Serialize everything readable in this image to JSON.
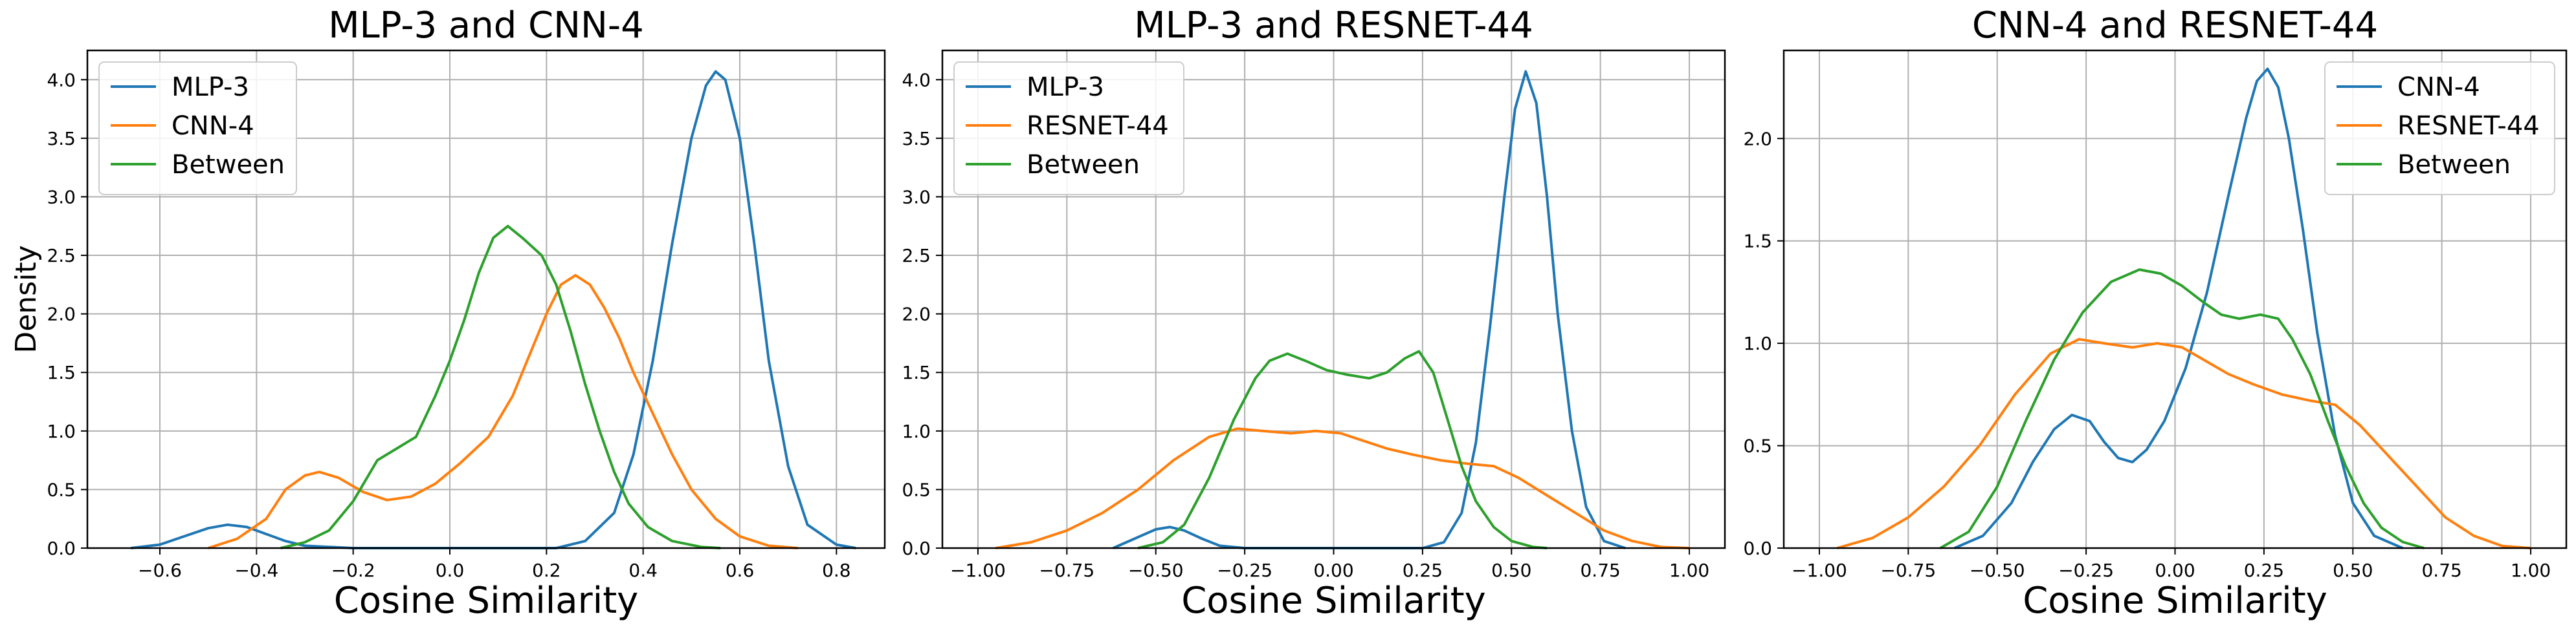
{
  "chart_data": [
    {
      "type": "line",
      "title": "MLP-3 and CNN-4",
      "xlabel": "Cosine Similarity",
      "ylabel": "Density",
      "xlim": [
        -0.75,
        0.9
      ],
      "ylim": [
        0,
        4.25
      ],
      "xticks": [
        -0.6,
        -0.4,
        -0.2,
        0.0,
        0.2,
        0.4,
        0.6,
        0.8
      ],
      "xtick_labels": [
        "−0.6",
        "−0.4",
        "−0.2",
        "0.0",
        "0.2",
        "0.4",
        "0.6",
        "0.8"
      ],
      "yticks": [
        0,
        0.5,
        1.0,
        1.5,
        2.0,
        2.5,
        3.0,
        3.5,
        4.0
      ],
      "ytick_labels": [
        "0.0",
        "0.5",
        "1.0",
        "1.5",
        "2.0",
        "2.5",
        "3.0",
        "3.5",
        "4.0"
      ],
      "grid": true,
      "legend": "top-left",
      "series": [
        {
          "name": "MLP-3",
          "color": "#1f77b4",
          "points": [
            [
              -0.66,
              0
            ],
            [
              -0.6,
              0.03
            ],
            [
              -0.55,
              0.1
            ],
            [
              -0.5,
              0.17
            ],
            [
              -0.46,
              0.2
            ],
            [
              -0.42,
              0.18
            ],
            [
              -0.38,
              0.12
            ],
            [
              -0.34,
              0.06
            ],
            [
              -0.3,
              0.02
            ],
            [
              -0.2,
              0
            ],
            [
              0.22,
              0
            ],
            [
              0.28,
              0.06
            ],
            [
              0.34,
              0.3
            ],
            [
              0.38,
              0.8
            ],
            [
              0.42,
              1.6
            ],
            [
              0.46,
              2.6
            ],
            [
              0.5,
              3.5
            ],
            [
              0.53,
              3.95
            ],
            [
              0.55,
              4.07
            ],
            [
              0.57,
              4.0
            ],
            [
              0.6,
              3.5
            ],
            [
              0.63,
              2.6
            ],
            [
              0.66,
              1.6
            ],
            [
              0.7,
              0.7
            ],
            [
              0.74,
              0.2
            ],
            [
              0.8,
              0.03
            ],
            [
              0.84,
              0
            ]
          ]
        },
        {
          "name": "CNN-4",
          "color": "#ff7f0e",
          "points": [
            [
              -0.5,
              0
            ],
            [
              -0.44,
              0.08
            ],
            [
              -0.38,
              0.25
            ],
            [
              -0.34,
              0.5
            ],
            [
              -0.3,
              0.62
            ],
            [
              -0.27,
              0.65
            ],
            [
              -0.23,
              0.6
            ],
            [
              -0.18,
              0.48
            ],
            [
              -0.13,
              0.41
            ],
            [
              -0.08,
              0.44
            ],
            [
              -0.03,
              0.55
            ],
            [
              0.02,
              0.72
            ],
            [
              0.08,
              0.95
            ],
            [
              0.13,
              1.3
            ],
            [
              0.17,
              1.7
            ],
            [
              0.2,
              2.0
            ],
            [
              0.23,
              2.25
            ],
            [
              0.26,
              2.33
            ],
            [
              0.29,
              2.25
            ],
            [
              0.32,
              2.05
            ],
            [
              0.35,
              1.8
            ],
            [
              0.38,
              1.5
            ],
            [
              0.42,
              1.15
            ],
            [
              0.46,
              0.8
            ],
            [
              0.5,
              0.5
            ],
            [
              0.55,
              0.25
            ],
            [
              0.6,
              0.1
            ],
            [
              0.66,
              0.02
            ],
            [
              0.72,
              0
            ]
          ]
        },
        {
          "name": "Between",
          "color": "#2ca02c",
          "points": [
            [
              -0.35,
              0
            ],
            [
              -0.3,
              0.05
            ],
            [
              -0.25,
              0.15
            ],
            [
              -0.2,
              0.4
            ],
            [
              -0.15,
              0.75
            ],
            [
              -0.11,
              0.85
            ],
            [
              -0.07,
              0.95
            ],
            [
              -0.03,
              1.3
            ],
            [
              0.0,
              1.6
            ],
            [
              0.03,
              1.95
            ],
            [
              0.06,
              2.35
            ],
            [
              0.09,
              2.65
            ],
            [
              0.12,
              2.75
            ],
            [
              0.15,
              2.65
            ],
            [
              0.19,
              2.5
            ],
            [
              0.22,
              2.25
            ],
            [
              0.25,
              1.85
            ],
            [
              0.28,
              1.4
            ],
            [
              0.31,
              1.0
            ],
            [
              0.34,
              0.65
            ],
            [
              0.37,
              0.38
            ],
            [
              0.41,
              0.18
            ],
            [
              0.46,
              0.06
            ],
            [
              0.52,
              0.01
            ],
            [
              0.56,
              0
            ]
          ]
        }
      ]
    },
    {
      "type": "line",
      "title": "MLP-3 and RESNET-44",
      "xlabel": "Cosine Similarity",
      "ylabel": "",
      "xlim": [
        -1.1,
        1.1
      ],
      "ylim": [
        0,
        4.25
      ],
      "xticks": [
        -1.0,
        -0.75,
        -0.5,
        -0.25,
        0.0,
        0.25,
        0.5,
        0.75,
        1.0
      ],
      "xtick_labels": [
        "−1.00",
        "−0.75",
        "−0.50",
        "−0.25",
        "0.00",
        "0.25",
        "0.50",
        "0.75",
        "1.00"
      ],
      "yticks": [
        0,
        0.5,
        1.0,
        1.5,
        2.0,
        2.5,
        3.0,
        3.5,
        4.0
      ],
      "ytick_labels": [
        "0.0",
        "0.5",
        "1.0",
        "1.5",
        "2.0",
        "2.5",
        "3.0",
        "3.5",
        "4.0"
      ],
      "grid": true,
      "legend": "top-left",
      "series": [
        {
          "name": "MLP-3",
          "color": "#1f77b4",
          "points": [
            [
              -0.62,
              0
            ],
            [
              -0.56,
              0.08
            ],
            [
              -0.5,
              0.16
            ],
            [
              -0.46,
              0.18
            ],
            [
              -0.42,
              0.15
            ],
            [
              -0.37,
              0.08
            ],
            [
              -0.32,
              0.02
            ],
            [
              -0.25,
              0
            ],
            [
              0.25,
              0
            ],
            [
              0.31,
              0.05
            ],
            [
              0.36,
              0.3
            ],
            [
              0.4,
              0.9
            ],
            [
              0.44,
              1.9
            ],
            [
              0.48,
              3.0
            ],
            [
              0.51,
              3.75
            ],
            [
              0.54,
              4.07
            ],
            [
              0.57,
              3.8
            ],
            [
              0.6,
              3.0
            ],
            [
              0.63,
              2.0
            ],
            [
              0.67,
              1.0
            ],
            [
              0.71,
              0.35
            ],
            [
              0.76,
              0.06
            ],
            [
              0.82,
              0
            ]
          ]
        },
        {
          "name": "RESNET-44",
          "color": "#ff7f0e",
          "points": [
            [
              -0.95,
              0
            ],
            [
              -0.85,
              0.05
            ],
            [
              -0.75,
              0.15
            ],
            [
              -0.65,
              0.3
            ],
            [
              -0.55,
              0.5
            ],
            [
              -0.45,
              0.75
            ],
            [
              -0.35,
              0.95
            ],
            [
              -0.27,
              1.02
            ],
            [
              -0.2,
              1.0
            ],
            [
              -0.12,
              0.98
            ],
            [
              -0.05,
              1.0
            ],
            [
              0.02,
              0.98
            ],
            [
              0.08,
              0.92
            ],
            [
              0.15,
              0.85
            ],
            [
              0.22,
              0.8
            ],
            [
              0.3,
              0.75
            ],
            [
              0.38,
              0.72
            ],
            [
              0.45,
              0.7
            ],
            [
              0.52,
              0.6
            ],
            [
              0.6,
              0.45
            ],
            [
              0.68,
              0.3
            ],
            [
              0.76,
              0.15
            ],
            [
              0.84,
              0.06
            ],
            [
              0.92,
              0.01
            ],
            [
              1.0,
              0
            ]
          ]
        },
        {
          "name": "Between",
          "color": "#2ca02c",
          "points": [
            [
              -0.55,
              0
            ],
            [
              -0.48,
              0.05
            ],
            [
              -0.42,
              0.2
            ],
            [
              -0.35,
              0.6
            ],
            [
              -0.28,
              1.1
            ],
            [
              -0.22,
              1.45
            ],
            [
              -0.18,
              1.6
            ],
            [
              -0.13,
              1.66
            ],
            [
              -0.08,
              1.6
            ],
            [
              -0.02,
              1.52
            ],
            [
              0.04,
              1.48
            ],
            [
              0.1,
              1.45
            ],
            [
              0.15,
              1.5
            ],
            [
              0.2,
              1.62
            ],
            [
              0.24,
              1.68
            ],
            [
              0.28,
              1.5
            ],
            [
              0.32,
              1.1
            ],
            [
              0.36,
              0.7
            ],
            [
              0.4,
              0.4
            ],
            [
              0.45,
              0.18
            ],
            [
              0.5,
              0.06
            ],
            [
              0.56,
              0.01
            ],
            [
              0.6,
              0
            ]
          ]
        }
      ]
    },
    {
      "type": "line",
      "title": "CNN-4 and RESNET-44",
      "xlabel": "Cosine Similarity",
      "ylabel": "",
      "xlim": [
        -1.1,
        1.1
      ],
      "ylim": [
        0,
        2.43
      ],
      "xticks": [
        -1.0,
        -0.75,
        -0.5,
        -0.25,
        0.0,
        0.25,
        0.5,
        0.75,
        1.0
      ],
      "xtick_labels": [
        "−1.00",
        "−0.75",
        "−0.50",
        "−0.25",
        "0.00",
        "0.25",
        "0.50",
        "0.75",
        "1.00"
      ],
      "yticks": [
        0,
        0.5,
        1.0,
        1.5,
        2.0
      ],
      "ytick_labels": [
        "0.0",
        "0.5",
        "1.0",
        "1.5",
        "2.0"
      ],
      "grid": true,
      "legend": "top-right",
      "series": [
        {
          "name": "CNN-4",
          "color": "#1f77b4",
          "points": [
            [
              -0.62,
              0
            ],
            [
              -0.54,
              0.06
            ],
            [
              -0.46,
              0.22
            ],
            [
              -0.4,
              0.42
            ],
            [
              -0.34,
              0.58
            ],
            [
              -0.29,
              0.65
            ],
            [
              -0.24,
              0.62
            ],
            [
              -0.2,
              0.52
            ],
            [
              -0.16,
              0.44
            ],
            [
              -0.12,
              0.42
            ],
            [
              -0.08,
              0.48
            ],
            [
              -0.03,
              0.62
            ],
            [
              0.03,
              0.88
            ],
            [
              0.09,
              1.25
            ],
            [
              0.15,
              1.72
            ],
            [
              0.2,
              2.1
            ],
            [
              0.23,
              2.28
            ],
            [
              0.26,
              2.34
            ],
            [
              0.29,
              2.25
            ],
            [
              0.32,
              2.0
            ],
            [
              0.36,
              1.55
            ],
            [
              0.4,
              1.05
            ],
            [
              0.45,
              0.55
            ],
            [
              0.5,
              0.22
            ],
            [
              0.56,
              0.06
            ],
            [
              0.64,
              0
            ]
          ]
        },
        {
          "name": "RESNET-44",
          "color": "#ff7f0e",
          "points": [
            [
              -0.95,
              0
            ],
            [
              -0.85,
              0.05
            ],
            [
              -0.75,
              0.15
            ],
            [
              -0.65,
              0.3
            ],
            [
              -0.55,
              0.5
            ],
            [
              -0.45,
              0.75
            ],
            [
              -0.35,
              0.95
            ],
            [
              -0.27,
              1.02
            ],
            [
              -0.2,
              1.0
            ],
            [
              -0.12,
              0.98
            ],
            [
              -0.05,
              1.0
            ],
            [
              0.02,
              0.98
            ],
            [
              0.08,
              0.92
            ],
            [
              0.15,
              0.85
            ],
            [
              0.22,
              0.8
            ],
            [
              0.3,
              0.75
            ],
            [
              0.38,
              0.72
            ],
            [
              0.45,
              0.7
            ],
            [
              0.52,
              0.6
            ],
            [
              0.6,
              0.45
            ],
            [
              0.68,
              0.3
            ],
            [
              0.76,
              0.15
            ],
            [
              0.84,
              0.06
            ],
            [
              0.92,
              0.01
            ],
            [
              1.0,
              0
            ]
          ]
        },
        {
          "name": "Between",
          "color": "#2ca02c",
          "points": [
            [
              -0.66,
              0
            ],
            [
              -0.58,
              0.08
            ],
            [
              -0.5,
              0.3
            ],
            [
              -0.42,
              0.62
            ],
            [
              -0.34,
              0.92
            ],
            [
              -0.26,
              1.15
            ],
            [
              -0.18,
              1.3
            ],
            [
              -0.1,
              1.36
            ],
            [
              -0.04,
              1.34
            ],
            [
              0.02,
              1.28
            ],
            [
              0.08,
              1.2
            ],
            [
              0.13,
              1.14
            ],
            [
              0.18,
              1.12
            ],
            [
              0.24,
              1.14
            ],
            [
              0.29,
              1.12
            ],
            [
              0.33,
              1.02
            ],
            [
              0.38,
              0.85
            ],
            [
              0.43,
              0.62
            ],
            [
              0.48,
              0.4
            ],
            [
              0.53,
              0.22
            ],
            [
              0.58,
              0.1
            ],
            [
              0.64,
              0.03
            ],
            [
              0.7,
              0
            ]
          ]
        }
      ]
    }
  ]
}
